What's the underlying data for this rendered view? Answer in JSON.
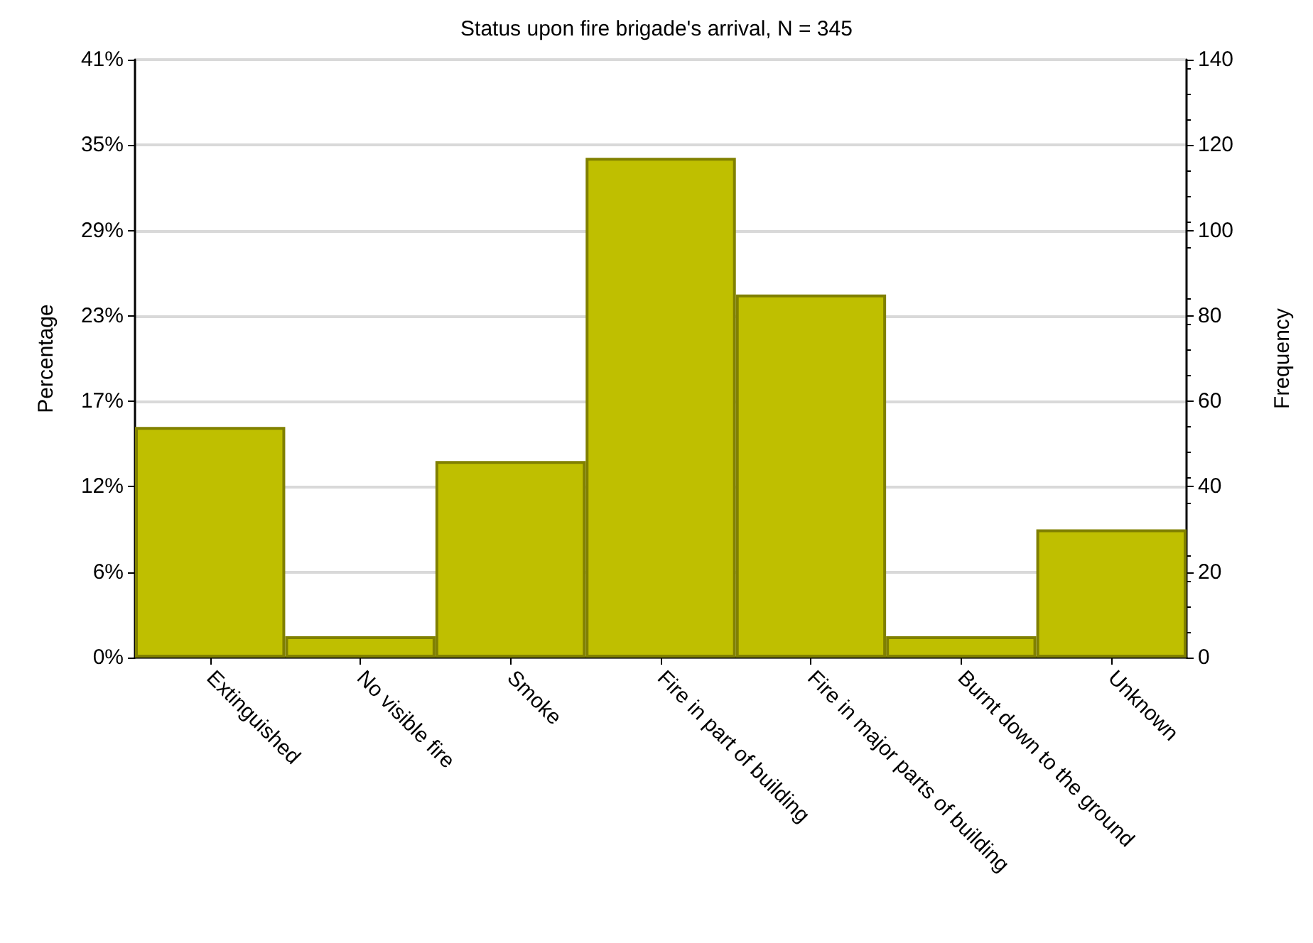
{
  "chart_data": {
    "type": "bar",
    "title": "Status upon fire brigade's arrival, N = 345",
    "ylabel": "Percentage",
    "y2label": "Frequency",
    "categories": [
      "Extinguished",
      "No visible fire",
      "Smoke",
      "Fire in part of building",
      "Fire in major parts of building",
      "Burnt down to the ground",
      "Unknown"
    ],
    "series": [
      {
        "color": "#bfbf00",
        "axis": "y2",
        "values": [
          54,
          5,
          46,
          117,
          85,
          5,
          30
        ]
      }
    ],
    "ylim": [
      0,
      40.6
    ],
    "yticks": [
      {
        "value": 0,
        "label": "0%"
      },
      {
        "value": 5.8,
        "label": "6%"
      },
      {
        "value": 11.6,
        "label": "12%"
      },
      {
        "value": 17.4,
        "label": "17%"
      },
      {
        "value": 23.2,
        "label": "23%"
      },
      {
        "value": 29,
        "label": "29%"
      },
      {
        "value": 34.8,
        "label": "35%"
      },
      {
        "value": 40.6,
        "label": "41%"
      }
    ],
    "y2lim": [
      0,
      140
    ],
    "y2ticks": [
      0,
      20,
      40,
      60,
      80,
      100,
      120,
      140
    ],
    "grid": "y"
  }
}
